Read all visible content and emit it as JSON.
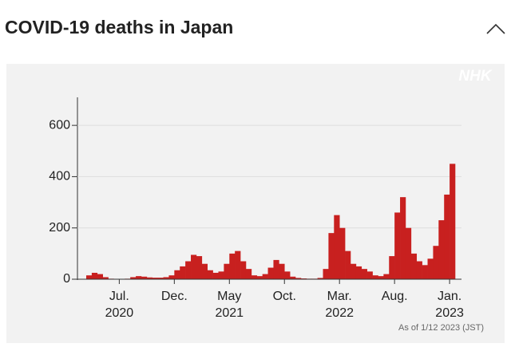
{
  "header": {
    "title": "COVID-19 deaths in Japan"
  },
  "logo": "NHK",
  "chart_data": {
    "type": "bar",
    "categories": [
      null,
      null,
      null,
      null,
      null,
      null,
      "Jul.",
      null,
      null,
      null,
      null,
      null,
      null,
      null,
      null,
      null,
      "Dec.",
      null,
      null,
      null,
      null,
      null,
      null,
      null,
      null,
      null,
      "May",
      null,
      null,
      null,
      null,
      null,
      null,
      null,
      null,
      null,
      "Oct.",
      null,
      null,
      null,
      null,
      null,
      null,
      null,
      null,
      null,
      "Mar.",
      null,
      null,
      null,
      null,
      null,
      null,
      null,
      null,
      null,
      "Aug.",
      null,
      null,
      null,
      null,
      null,
      null,
      null,
      null,
      null,
      "Jan."
    ],
    "years": [
      null,
      null,
      null,
      null,
      null,
      null,
      "2020",
      null,
      null,
      null,
      null,
      null,
      null,
      null,
      null,
      null,
      null,
      null,
      null,
      null,
      null,
      null,
      null,
      null,
      null,
      null,
      "2021",
      null,
      null,
      null,
      null,
      null,
      null,
      null,
      null,
      null,
      null,
      null,
      null,
      null,
      null,
      null,
      null,
      null,
      null,
      null,
      "2022",
      null,
      null,
      null,
      null,
      null,
      null,
      null,
      null,
      null,
      null,
      null,
      null,
      null,
      null,
      null,
      null,
      null,
      null,
      null,
      "2023"
    ],
    "values": [
      15,
      25,
      20,
      8,
      2,
      1,
      1,
      2,
      8,
      12,
      10,
      7,
      6,
      6,
      8,
      15,
      35,
      50,
      70,
      95,
      90,
      60,
      35,
      25,
      30,
      60,
      100,
      110,
      70,
      40,
      15,
      12,
      20,
      45,
      75,
      60,
      30,
      10,
      5,
      3,
      2,
      2,
      5,
      40,
      180,
      250,
      200,
      110,
      60,
      50,
      40,
      30,
      15,
      12,
      20,
      90,
      260,
      320,
      200,
      100,
      70,
      55,
      80,
      130,
      230,
      330,
      450
    ],
    "color": "#c8201f",
    "ylim": [
      0,
      700
    ],
    "yticks": [
      0,
      200,
      400,
      600
    ],
    "grid": true,
    "note": "As of 1/12 2023 (JST)"
  }
}
